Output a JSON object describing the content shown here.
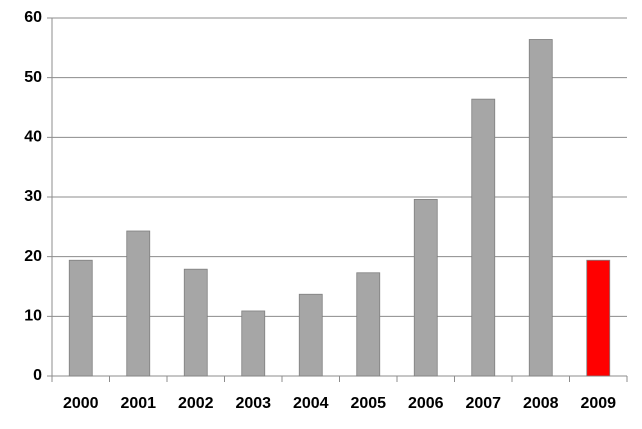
{
  "chart_data": {
    "type": "bar",
    "categories": [
      "2000",
      "2001",
      "2002",
      "2003",
      "2004",
      "2005",
      "2006",
      "2007",
      "2008",
      "2009"
    ],
    "values": [
      19.4,
      24.3,
      17.9,
      10.9,
      13.7,
      17.3,
      29.6,
      46.4,
      56.4,
      19.4
    ],
    "colors": [
      "#a6a6a6",
      "#a6a6a6",
      "#a6a6a6",
      "#a6a6a6",
      "#a6a6a6",
      "#a6a6a6",
      "#a6a6a6",
      "#a6a6a6",
      "#a6a6a6",
      "#ff0000"
    ],
    "ylim": [
      0,
      60
    ],
    "yticks": [
      0,
      10,
      20,
      30,
      40,
      50,
      60
    ],
    "grid": true
  }
}
